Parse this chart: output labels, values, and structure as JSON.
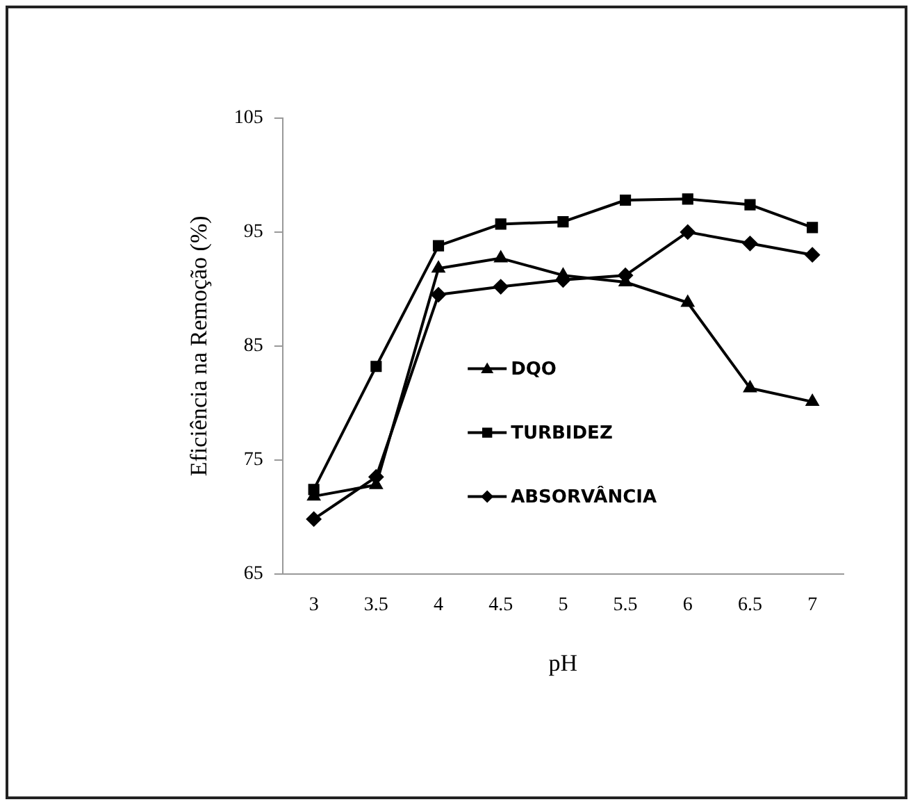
{
  "chart_data": {
    "type": "line",
    "xlabel": "pH",
    "ylabel": "Eficiência na Remoção (%)",
    "categories": [
      "3",
      "3.5",
      "4",
      "4.5",
      "5",
      "5.5",
      "6",
      "6.5",
      "7"
    ],
    "series": [
      {
        "name": "DQO",
        "color": "#000000",
        "marker": "triangle",
        "values": [
          71.8,
          72.8,
          91.8,
          92.7,
          91.2,
          90.6,
          88.8,
          81.3,
          80.1
        ]
      },
      {
        "name": "TURBIDEZ",
        "color": "#000000",
        "marker": "square",
        "values": [
          72.4,
          83.2,
          93.8,
          95.7,
          95.9,
          97.8,
          97.9,
          97.4,
          95.4
        ]
      },
      {
        "name": "ABSORVÂNCIA",
        "color": "#000000",
        "marker": "diamond",
        "values": [
          69.8,
          73.5,
          89.5,
          90.2,
          90.8,
          91.2,
          95.0,
          94.0,
          93.0
        ]
      }
    ],
    "ylim": [
      65,
      105
    ],
    "yticks": [
      65,
      75,
      85,
      95,
      105
    ],
    "grid": false,
    "legend": "center",
    "line_style": "solid"
  }
}
